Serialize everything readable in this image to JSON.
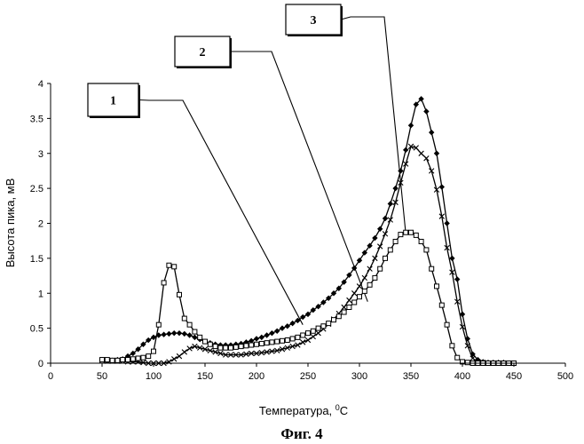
{
  "chart_data": {
    "type": "line",
    "title": "",
    "caption": "Фиг. 4",
    "xlabel": "Температура, ",
    "xlabel_unit_sup": "0",
    "xlabel_unit": "C",
    "ylabel": "Высота пика, мВ",
    "xlim": [
      0,
      500
    ],
    "ylim": [
      0,
      4
    ],
    "xticks": [
      "0",
      "50",
      "100",
      "150",
      "200",
      "250",
      "300",
      "350",
      "400",
      "450",
      "500"
    ],
    "yticks": [
      "0",
      "0.5",
      "1",
      "1.5",
      "2",
      "2.5",
      "3",
      "3.5",
      "4"
    ],
    "grid": false,
    "legend": "none",
    "callouts": [
      {
        "label": "1",
        "series_index": 0,
        "point": [
          245,
          0.55
        ]
      },
      {
        "label": "2",
        "series_index": 1,
        "point": [
          308,
          0.88
        ]
      },
      {
        "label": "3",
        "series_index": 2,
        "point": [
          345,
          1.85
        ]
      }
    ],
    "series": [
      {
        "marker": "diamond",
        "color": "#000000",
        "x": [
          50,
          55,
          60,
          65,
          70,
          75,
          80,
          85,
          90,
          95,
          100,
          105,
          110,
          115,
          120,
          125,
          130,
          135,
          140,
          145,
          150,
          155,
          160,
          165,
          170,
          175,
          180,
          185,
          190,
          195,
          200,
          205,
          210,
          215,
          220,
          225,
          230,
          235,
          240,
          245,
          250,
          255,
          260,
          265,
          270,
          275,
          280,
          285,
          290,
          295,
          300,
          305,
          310,
          315,
          320,
          325,
          330,
          335,
          340,
          345,
          350,
          355,
          360,
          365,
          370,
          375,
          380,
          385,
          390,
          395,
          400,
          405,
          410,
          415,
          420,
          425,
          430,
          435,
          440,
          445,
          450
        ],
        "y": [
          0.05,
          0.04,
          0.04,
          0.05,
          0.06,
          0.1,
          0.14,
          0.2,
          0.27,
          0.33,
          0.37,
          0.4,
          0.41,
          0.42,
          0.43,
          0.43,
          0.42,
          0.4,
          0.37,
          0.34,
          0.31,
          0.29,
          0.27,
          0.26,
          0.26,
          0.26,
          0.27,
          0.28,
          0.3,
          0.32,
          0.35,
          0.37,
          0.4,
          0.43,
          0.46,
          0.5,
          0.53,
          0.57,
          0.61,
          0.66,
          0.7,
          0.76,
          0.81,
          0.87,
          0.93,
          1.0,
          1.07,
          1.16,
          1.26,
          1.36,
          1.47,
          1.58,
          1.68,
          1.79,
          1.92,
          2.07,
          2.28,
          2.5,
          2.75,
          3.05,
          3.4,
          3.7,
          3.78,
          3.6,
          3.3,
          3.0,
          2.52,
          2.0,
          1.5,
          1.2,
          0.7,
          0.35,
          0.13,
          0.05,
          0.02,
          0.01,
          0.01,
          0.01,
          0.01,
          0.0,
          0.0
        ]
      },
      {
        "marker": "cross",
        "color": "#000000",
        "x": [
          50,
          55,
          60,
          65,
          70,
          75,
          80,
          85,
          90,
          95,
          100,
          105,
          110,
          115,
          120,
          125,
          130,
          135,
          140,
          145,
          150,
          155,
          160,
          165,
          170,
          175,
          180,
          185,
          190,
          195,
          200,
          205,
          210,
          215,
          220,
          225,
          230,
          235,
          240,
          245,
          250,
          255,
          260,
          265,
          270,
          275,
          280,
          285,
          290,
          295,
          300,
          305,
          310,
          315,
          320,
          325,
          330,
          335,
          340,
          345,
          350,
          355,
          360,
          365,
          370,
          375,
          380,
          385,
          390,
          395,
          400,
          405,
          410,
          415,
          420,
          425,
          430,
          435,
          440,
          445,
          450
        ],
        "y": [
          0.04,
          0.03,
          0.03,
          0.03,
          0.03,
          0.02,
          0.02,
          0.02,
          0.01,
          0.0,
          0.0,
          0.0,
          0.0,
          0.02,
          0.06,
          0.1,
          0.16,
          0.21,
          0.24,
          0.22,
          0.2,
          0.18,
          0.16,
          0.14,
          0.12,
          0.12,
          0.12,
          0.12,
          0.13,
          0.14,
          0.14,
          0.15,
          0.16,
          0.17,
          0.18,
          0.2,
          0.22,
          0.24,
          0.26,
          0.3,
          0.33,
          0.38,
          0.43,
          0.49,
          0.56,
          0.63,
          0.71,
          0.8,
          0.9,
          1.0,
          1.1,
          1.22,
          1.35,
          1.5,
          1.67,
          1.85,
          2.05,
          2.3,
          2.58,
          2.85,
          3.1,
          3.08,
          3.0,
          2.93,
          2.75,
          2.48,
          2.1,
          1.65,
          1.3,
          0.88,
          0.52,
          0.25,
          0.07,
          0.02,
          0.01,
          0.0,
          0.0,
          0.0,
          0.0,
          0.0,
          0.0
        ]
      },
      {
        "marker": "square",
        "color": "#000000",
        "x": [
          50,
          55,
          60,
          65,
          70,
          75,
          80,
          85,
          90,
          95,
          100,
          105,
          110,
          115,
          120,
          125,
          130,
          135,
          140,
          145,
          150,
          155,
          160,
          165,
          170,
          175,
          180,
          185,
          190,
          195,
          200,
          205,
          210,
          215,
          220,
          225,
          230,
          235,
          240,
          245,
          250,
          255,
          260,
          265,
          270,
          275,
          280,
          285,
          290,
          295,
          300,
          305,
          310,
          315,
          320,
          325,
          330,
          335,
          340,
          345,
          350,
          355,
          360,
          365,
          370,
          375,
          380,
          385,
          390,
          395,
          400,
          405,
          410,
          415,
          420,
          425,
          430,
          435,
          440,
          445,
          450
        ],
        "y": [
          0.05,
          0.05,
          0.04,
          0.04,
          0.05,
          0.05,
          0.06,
          0.07,
          0.08,
          0.1,
          0.17,
          0.55,
          1.15,
          1.4,
          1.38,
          0.98,
          0.64,
          0.55,
          0.45,
          0.37,
          0.31,
          0.27,
          0.24,
          0.22,
          0.22,
          0.22,
          0.23,
          0.24,
          0.25,
          0.26,
          0.27,
          0.28,
          0.29,
          0.3,
          0.31,
          0.32,
          0.33,
          0.35,
          0.37,
          0.4,
          0.43,
          0.46,
          0.5,
          0.53,
          0.57,
          0.62,
          0.67,
          0.73,
          0.8,
          0.87,
          0.95,
          1.03,
          1.12,
          1.22,
          1.35,
          1.5,
          1.62,
          1.74,
          1.84,
          1.87,
          1.87,
          1.83,
          1.74,
          1.62,
          1.35,
          1.1,
          0.83,
          0.55,
          0.25,
          0.08,
          0.02,
          0.01,
          0.0,
          0.0,
          0.0,
          0.0,
          0.0,
          0.0,
          0.0,
          0.0,
          0.0
        ]
      }
    ]
  }
}
